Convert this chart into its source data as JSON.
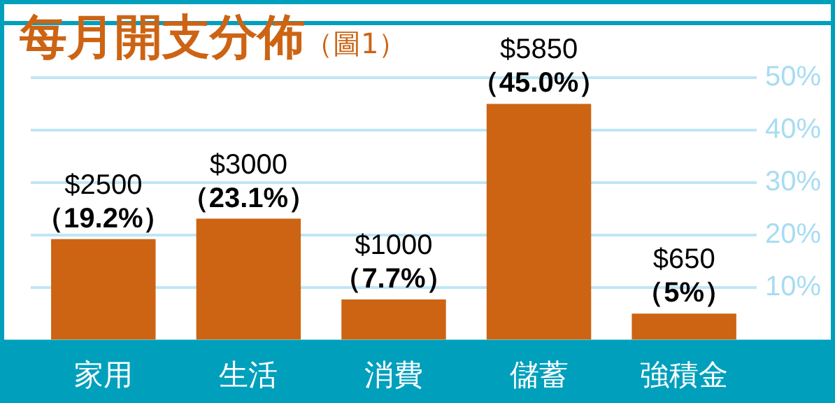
{
  "chart_data": {
    "type": "bar",
    "title": "每月開支分佈",
    "subtitle": "（圖1）",
    "categories": [
      "家用",
      "生活",
      "消費",
      "儲蓄",
      "強積金"
    ],
    "values": [
      19.2,
      23.1,
      7.7,
      45.0,
      5
    ],
    "value_labels": [
      "$2500\n（19.2%）",
      "$3000\n（23.1%）",
      "$1000\n（7.7%）",
      "$5850\n（45.0%）",
      "$650\n（5%）"
    ],
    "color": "#cc6414",
    "ylim": [
      0,
      60
    ],
    "yticks": [
      {
        "value": 10,
        "label": "10%"
      },
      {
        "value": 20,
        "label": "20%"
      },
      {
        "value": 30,
        "label": "30%"
      },
      {
        "value": 40,
        "label": "40%"
      },
      {
        "value": 50,
        "label": "50%"
      }
    ],
    "grid": "y"
  }
}
